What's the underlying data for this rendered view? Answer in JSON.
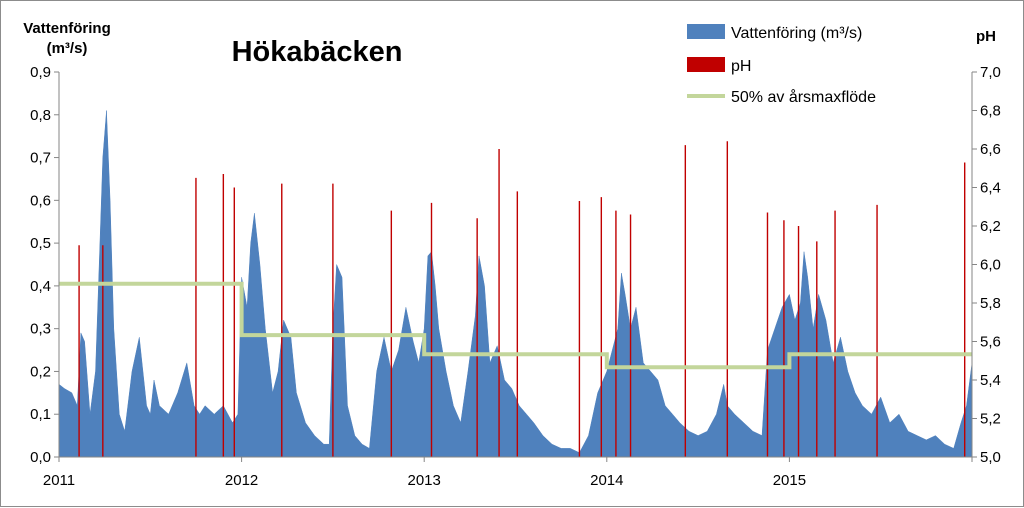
{
  "chart_data": {
    "type": "area",
    "title": "Hökabäcken",
    "y_left_label_line1": "Vattenföring",
    "y_left_label_line2": "(m³/s)",
    "y_right_label": "pH",
    "ylim_left": [
      0,
      0.9
    ],
    "ylim_right": [
      5.0,
      7.0
    ],
    "xlim": [
      2011,
      2016
    ],
    "y_left_ticks": [
      "0,0",
      "0,1",
      "0,2",
      "0,3",
      "0,4",
      "0,5",
      "0,6",
      "0,7",
      "0,8",
      "0,9"
    ],
    "y_right_ticks": [
      "5,0",
      "5,2",
      "5,4",
      "5,6",
      "5,8",
      "6,0",
      "6,2",
      "6,4",
      "6,6",
      "6,8",
      "7,0"
    ],
    "x_ticks": [
      "2011",
      "2012",
      "2013",
      "2014",
      "2015"
    ],
    "x_tick_values": [
      2011,
      2012,
      2013,
      2014,
      2015
    ],
    "legend_position": "top-right",
    "series": [
      {
        "name": "Vattenföring (m³/s)",
        "type": "area",
        "axis": "left",
        "color": "#4f81bd",
        "x": [
          2011.0,
          2011.03,
          2011.07,
          2011.1,
          2011.12,
          2011.14,
          2011.17,
          2011.2,
          2011.22,
          2011.24,
          2011.26,
          2011.28,
          2011.3,
          2011.33,
          2011.36,
          2011.4,
          2011.44,
          2011.48,
          2011.5,
          2011.52,
          2011.55,
          2011.6,
          2011.65,
          2011.7,
          2011.74,
          2011.77,
          2011.8,
          2011.85,
          2011.9,
          2011.95,
          2011.98,
          2012.0,
          2012.03,
          2012.05,
          2012.07,
          2012.1,
          2012.13,
          2012.17,
          2012.2,
          2012.23,
          2012.27,
          2012.3,
          2012.35,
          2012.4,
          2012.45,
          2012.48,
          2012.5,
          2012.52,
          2012.55,
          2012.58,
          2012.62,
          2012.66,
          2012.7,
          2012.74,
          2012.78,
          2012.82,
          2012.86,
          2012.9,
          2012.94,
          2012.97,
          2013.0,
          2013.02,
          2013.04,
          2013.06,
          2013.08,
          2013.12,
          2013.16,
          2013.2,
          2013.24,
          2013.28,
          2013.3,
          2013.33,
          2013.36,
          2013.4,
          2013.44,
          2013.48,
          2013.52,
          2013.56,
          2013.6,
          2013.65,
          2013.7,
          2013.75,
          2013.8,
          2013.85,
          2013.9,
          2013.95,
          2014.0,
          2014.03,
          2014.06,
          2014.08,
          2014.1,
          2014.13,
          2014.16,
          2014.2,
          2014.24,
          2014.28,
          2014.32,
          2014.36,
          2014.4,
          2014.45,
          2014.5,
          2014.55,
          2014.6,
          2014.64,
          2014.66,
          2014.7,
          2014.75,
          2014.8,
          2014.85,
          2014.88,
          2014.92,
          2014.96,
          2015.0,
          2015.03,
          2015.06,
          2015.08,
          2015.1,
          2015.13,
          2015.16,
          2015.2,
          2015.24,
          2015.28,
          2015.32,
          2015.36,
          2015.4,
          2015.45,
          2015.5,
          2015.55,
          2015.6,
          2015.65,
          2015.7,
          2015.75,
          2015.8,
          2015.85,
          2015.9,
          2015.94,
          2015.97,
          2016.0
        ],
        "values": [
          0.17,
          0.16,
          0.15,
          0.12,
          0.29,
          0.27,
          0.1,
          0.2,
          0.45,
          0.7,
          0.81,
          0.6,
          0.3,
          0.1,
          0.06,
          0.2,
          0.28,
          0.12,
          0.1,
          0.18,
          0.12,
          0.1,
          0.15,
          0.22,
          0.12,
          0.1,
          0.12,
          0.1,
          0.12,
          0.08,
          0.1,
          0.42,
          0.35,
          0.5,
          0.57,
          0.45,
          0.3,
          0.15,
          0.2,
          0.32,
          0.28,
          0.15,
          0.08,
          0.05,
          0.03,
          0.03,
          0.3,
          0.45,
          0.42,
          0.12,
          0.05,
          0.03,
          0.02,
          0.2,
          0.28,
          0.2,
          0.25,
          0.35,
          0.27,
          0.22,
          0.3,
          0.47,
          0.48,
          0.4,
          0.3,
          0.2,
          0.12,
          0.08,
          0.2,
          0.33,
          0.47,
          0.4,
          0.22,
          0.26,
          0.18,
          0.16,
          0.12,
          0.1,
          0.08,
          0.05,
          0.03,
          0.02,
          0.02,
          0.01,
          0.05,
          0.15,
          0.2,
          0.25,
          0.3,
          0.43,
          0.38,
          0.3,
          0.35,
          0.22,
          0.2,
          0.18,
          0.12,
          0.1,
          0.08,
          0.06,
          0.05,
          0.06,
          0.1,
          0.17,
          0.12,
          0.1,
          0.08,
          0.06,
          0.05,
          0.25,
          0.3,
          0.35,
          0.38,
          0.32,
          0.36,
          0.48,
          0.42,
          0.3,
          0.38,
          0.32,
          0.22,
          0.28,
          0.2,
          0.15,
          0.12,
          0.1,
          0.14,
          0.08,
          0.1,
          0.06,
          0.05,
          0.04,
          0.05,
          0.03,
          0.02,
          0.08,
          0.12,
          0.22
        ]
      },
      {
        "name": "pH",
        "type": "bar",
        "axis": "right",
        "color": "#c00000",
        "x": [
          2011.11,
          2011.24,
          2011.75,
          2011.9,
          2011.96,
          2012.22,
          2012.5,
          2012.82,
          2013.04,
          2013.29,
          2013.41,
          2013.51,
          2013.85,
          2013.97,
          2014.05,
          2014.13,
          2014.43,
          2014.66,
          2014.88,
          2014.97,
          2015.05,
          2015.15,
          2015.25,
          2015.48,
          2015.96
        ],
        "values": [
          6.1,
          6.1,
          6.45,
          6.47,
          6.4,
          6.42,
          6.42,
          6.28,
          6.32,
          6.24,
          6.6,
          6.38,
          6.33,
          6.35,
          6.28,
          6.26,
          6.62,
          6.64,
          6.27,
          6.23,
          6.2,
          6.12,
          6.28,
          6.31,
          6.53
        ]
      },
      {
        "name": "50% av årsmaxflöde",
        "type": "step",
        "axis": "left",
        "color": "#c3d69b",
        "x": [
          2011,
          2012,
          2013,
          2014,
          2015,
          2016
        ],
        "values": [
          0.405,
          0.285,
          0.24,
          0.21,
          0.24,
          0.24
        ]
      }
    ]
  }
}
